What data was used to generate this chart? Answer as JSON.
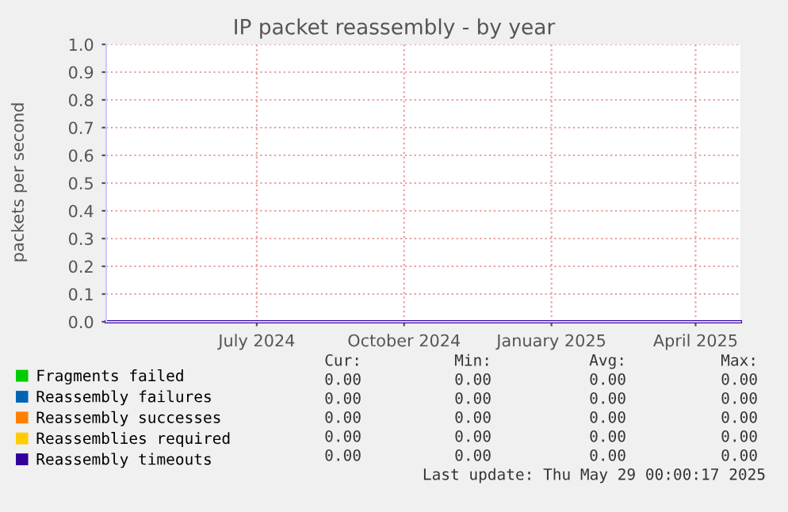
{
  "chart_data": {
    "type": "line",
    "title": "IP packet reassembly - by year",
    "ylabel": "packets per second",
    "xlim": [
      "2024-03-29",
      "2025-04-29"
    ],
    "xticks": [
      {
        "value": "2024-07-01",
        "label": "July 2024"
      },
      {
        "value": "2024-10-01",
        "label": "October 2024"
      },
      {
        "value": "2025-01-01",
        "label": "January 2025"
      },
      {
        "value": "2025-04-01",
        "label": "April 2025"
      }
    ],
    "ylim": [
      0,
      1
    ],
    "yticks": [
      {
        "value": 0,
        "label": "0.0"
      },
      {
        "value": 0.1,
        "label": "0.1"
      },
      {
        "value": 0.2,
        "label": "0.2"
      },
      {
        "value": 0.3,
        "label": "0.3"
      },
      {
        "value": 0.4,
        "label": "0.4"
      },
      {
        "value": 0.5,
        "label": "0.5"
      },
      {
        "value": 0.6,
        "label": "0.6"
      },
      {
        "value": 0.7,
        "label": "0.7"
      },
      {
        "value": 0.8,
        "label": "0.8"
      },
      {
        "value": 0.9,
        "label": "0.9"
      },
      {
        "value": 1,
        "label": "1.0"
      }
    ],
    "grid": true,
    "legend": "bottom left",
    "series": [
      {
        "name": "Fragments failed",
        "color": "#00cc00"
      },
      {
        "name": "Reassembly failures",
        "color": "#0066b3"
      },
      {
        "name": "Reassembly successes",
        "color": "#ff8000"
      },
      {
        "name": "Reassemblies required",
        "color": "#ffcc00"
      },
      {
        "name": "Reassembly timeouts",
        "color": "#330099",
        "x": [
          "2024-03-29",
          "2025-04-29"
        ],
        "values": [
          0,
          0
        ]
      }
    ],
    "annotations": [
      "Cur:",
      "Min:",
      "Avg:",
      "Max:",
      "0.00",
      "0.00",
      "0.00",
      "0.00",
      "0.00",
      "0.00",
      "0.00",
      "0.00",
      "0.00",
      "0.00",
      "0.00",
      "0.00",
      "0.00",
      "0.00",
      "0.00",
      "0.00",
      "0.00",
      "0.00",
      "0.00",
      "0.00",
      "Last update: Thu May 29 00:00:17 2025"
    ]
  }
}
